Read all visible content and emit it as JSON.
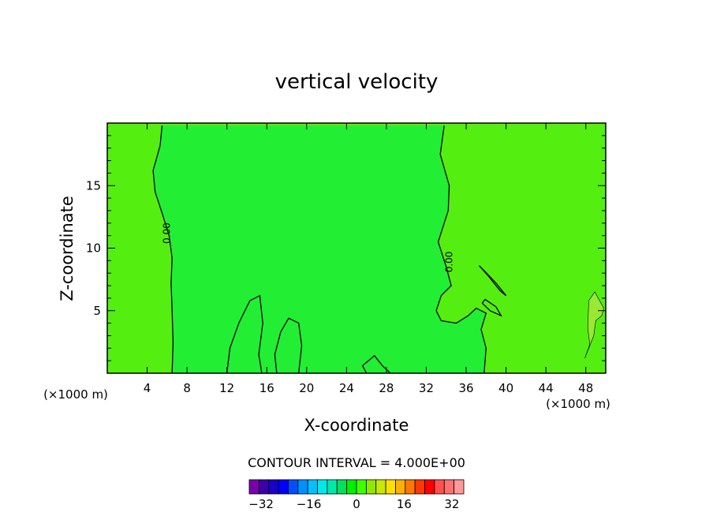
{
  "chart_data": {
    "type": "heatmap",
    "title": "vertical velocity",
    "xlabel": "X-coordinate",
    "ylabel": "Z-coordinate",
    "x_unit_left": "(×1000 m)",
    "x_unit_right": "(×1000 m)",
    "xlim": [
      0,
      50
    ],
    "ylim": [
      0,
      20
    ],
    "xticks": [
      4,
      8,
      12,
      16,
      20,
      24,
      28,
      32,
      36,
      40,
      44,
      48
    ],
    "yticks": [
      5,
      10,
      15
    ],
    "contour_interval_text": "CONTOUR INTERVAL = 4.000E+00",
    "contour_labels": [
      {
        "text": "0.00",
        "x": 6.3,
        "z": 11.2
      },
      {
        "text": "0.00",
        "x": 34.6,
        "z": 8.9
      }
    ],
    "zero_contour_left": [
      [
        5.5,
        19.8
      ],
      [
        5.3,
        18.2
      ],
      [
        4.6,
        16.2
      ],
      [
        4.8,
        14.5
      ],
      [
        5.5,
        12.8
      ],
      [
        6.2,
        11.0
      ],
      [
        6.5,
        9.2
      ],
      [
        6.4,
        7.2
      ],
      [
        6.5,
        5.0
      ],
      [
        6.6,
        2.5
      ],
      [
        6.5,
        0.0
      ]
    ],
    "zero_contour_right": [
      [
        33.8,
        19.8
      ],
      [
        33.4,
        17.5
      ],
      [
        34.3,
        15.0
      ],
      [
        34.2,
        13.0
      ],
      [
        33.2,
        10.5
      ],
      [
        34.0,
        8.5
      ],
      [
        34.5,
        7.0
      ],
      [
        33.5,
        6.2
      ],
      [
        33.0,
        5.0
      ],
      [
        33.5,
        4.2
      ],
      [
        35.0,
        4.0
      ],
      [
        36.2,
        4.6
      ],
      [
        37.0,
        5.2
      ],
      [
        38.0,
        4.8
      ],
      [
        37.5,
        3.5
      ],
      [
        38.0,
        2.0
      ],
      [
        37.8,
        0.0
      ]
    ],
    "colorbar": {
      "min": -36,
      "max": 36,
      "step": 4,
      "tick_labels": [
        "-32",
        "-16",
        "0",
        "16",
        "32"
      ],
      "tick_values": [
        -32,
        -16,
        0,
        16,
        32
      ],
      "colors": [
        "#7a00aa",
        "#3a00aa",
        "#1a00c8",
        "#0000ff",
        "#0050ff",
        "#0090ff",
        "#00c0ff",
        "#00e8e8",
        "#00e8a8",
        "#00e060",
        "#00f000",
        "#40ff00",
        "#90e800",
        "#c8e800",
        "#ffe000",
        "#ffb000",
        "#ff7800",
        "#ff3800",
        "#ff0000",
        "#ff5050",
        "#ff7070",
        "#ff9898"
      ]
    },
    "field_colors": {
      "positive_region": "#55ee11",
      "near_zero_region": "#22ee33",
      "stronger_positive": "#99e833"
    },
    "legend": "bottom"
  }
}
